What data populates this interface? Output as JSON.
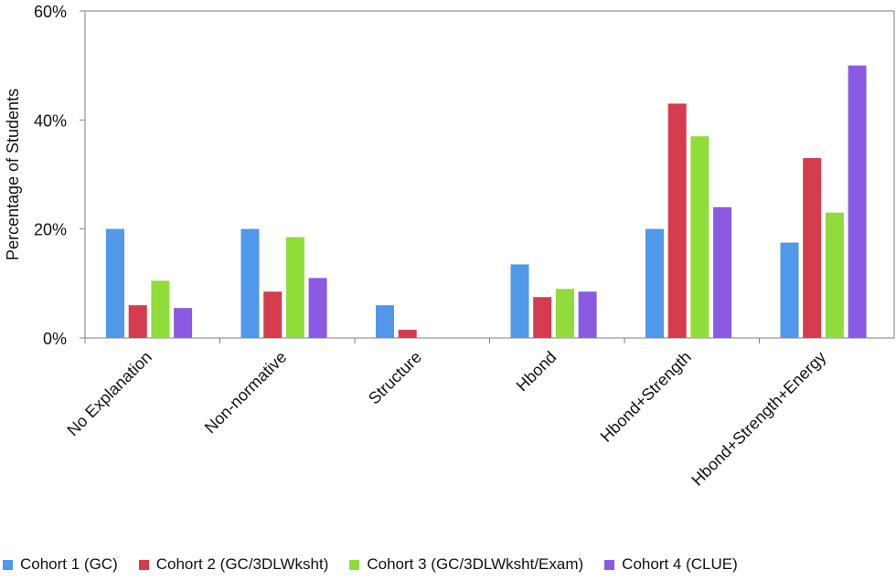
{
  "chart_data": {
    "type": "bar",
    "title": "",
    "xlabel": "",
    "ylabel": "Percentage of Students",
    "ylim": [
      0,
      60
    ],
    "yticks": [
      "0%",
      "20%",
      "40%",
      "60%"
    ],
    "categories": [
      "No Explanation",
      "Non-normative",
      "Structure",
      "Hbond",
      "Hbond+Strength",
      "Hbond+Strength+Energy"
    ],
    "series": [
      {
        "name": "Cohort 1 (GC)",
        "color": "#4f98ea",
        "values": [
          20,
          20,
          6,
          13.5,
          20,
          17.5
        ]
      },
      {
        "name": "Cohort 2 (GC/3DLWksht)",
        "color": "#d53c4d",
        "values": [
          6,
          8.5,
          1.5,
          7.5,
          43,
          33
        ]
      },
      {
        "name": "Cohort 3 (GC/3DLWksht/Exam)",
        "color": "#8fdc3a",
        "values": [
          10.5,
          18.5,
          0,
          9,
          37,
          23
        ]
      },
      {
        "name": "Cohort 4 (CLUE)",
        "color": "#8a5be2",
        "values": [
          5.5,
          11,
          0,
          8.5,
          24,
          50
        ]
      }
    ],
    "grid": false,
    "legend_position": "bottom"
  }
}
